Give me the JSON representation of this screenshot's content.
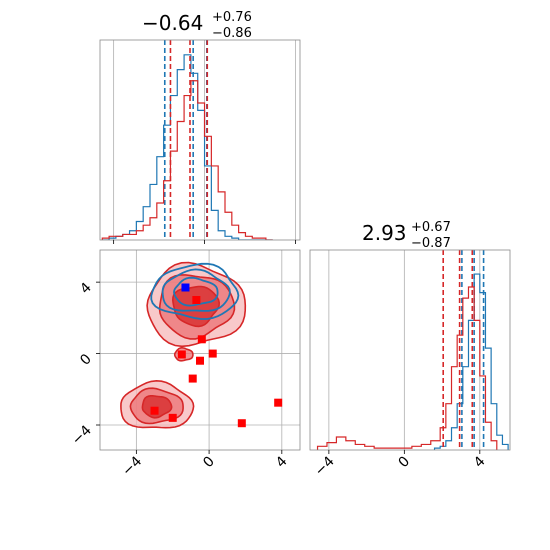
{
  "chart_data": {
    "type": "corner",
    "grid": true,
    "colors": {
      "series_a": "#1f77b4",
      "series_b": "#d62728",
      "marker_a": "#0000ff",
      "marker_b": "#ff0000"
    },
    "panels": {
      "hist_param1": {
        "type": "histogram",
        "title": {
          "main": "−0.64",
          "upper": "+0.76",
          "lower": "−0.86"
        },
        "xlim": [
          -4.6,
          4.2
        ],
        "x_ticks": [
          -4,
          0,
          4
        ],
        "quantiles": {
          "series_a": [
            -1.75,
            -0.5,
            0.1
          ],
          "series_b": [
            -1.5,
            -0.64,
            0.12
          ]
        },
        "series": [
          {
            "key": "series_a",
            "bins": [
              -4.5,
              -4.2,
              -3.9,
              -3.6,
              -3.3,
              -3.0,
              -2.7,
              -2.4,
              -2.1,
              -1.8,
              -1.5,
              -1.2,
              -0.9,
              -0.6,
              -0.3,
              0.0,
              0.3,
              0.6,
              0.9,
              1.2,
              1.5,
              1.8,
              2.1,
              2.4,
              2.7,
              3.0
            ],
            "counts": [
              0,
              0.01,
              0.02,
              0.03,
              0.05,
              0.1,
              0.18,
              0.3,
              0.45,
              0.62,
              0.78,
              0.92,
              1.0,
              0.9,
              0.7,
              0.4,
              0.16,
              0.05,
              0.02,
              0.01,
              0,
              0,
              0,
              0,
              0
            ]
          },
          {
            "key": "series_b",
            "bins": [
              -4.5,
              -4.2,
              -3.9,
              -3.6,
              -3.3,
              -3.0,
              -2.7,
              -2.4,
              -2.1,
              -1.8,
              -1.5,
              -1.2,
              -0.9,
              -0.6,
              -0.3,
              0.0,
              0.3,
              0.6,
              0.9,
              1.2,
              1.5,
              1.8,
              2.1,
              2.4,
              2.7,
              3.0
            ],
            "counts": [
              0.01,
              0.02,
              0.02,
              0.03,
              0.03,
              0.05,
              0.08,
              0.12,
              0.2,
              0.32,
              0.48,
              0.64,
              0.78,
              0.86,
              0.74,
              0.56,
              0.4,
              0.26,
              0.15,
              0.08,
              0.04,
              0.02,
              0.01,
              0.01,
              0
            ]
          }
        ]
      },
      "hist_param2": {
        "type": "histogram",
        "title": {
          "main": "2.93",
          "upper": "+0.67",
          "lower": "−0.87"
        },
        "xlim": [
          -5.0,
          5.6
        ],
        "x_ticks": [
          -4,
          0,
          4
        ],
        "quantiles": {
          "series_a": [
            3.05,
            3.7,
            4.2
          ],
          "series_b": [
            2.06,
            2.93,
            3.6
          ]
        },
        "series": [
          {
            "key": "series_a",
            "bins": [
              1.6,
              1.9,
              2.2,
              2.5,
              2.8,
              3.1,
              3.4,
              3.7,
              4.0,
              4.3,
              4.6,
              4.9,
              5.2,
              5.5
            ],
            "counts": [
              0.01,
              0.02,
              0.05,
              0.12,
              0.25,
              0.45,
              0.7,
              0.95,
              0.85,
              0.55,
              0.25,
              0.08,
              0.03
            ]
          },
          {
            "key": "series_b",
            "bins": [
              -4.6,
              -4.1,
              -3.6,
              -3.1,
              -2.6,
              -2.1,
              -1.6,
              -1.1,
              -0.6,
              -0.1,
              0.4,
              0.9,
              1.4,
              1.9,
              2.2,
              2.5,
              2.8,
              3.1,
              3.4,
              3.7,
              4.0,
              4.3,
              4.6,
              4.9
            ],
            "counts": [
              0.02,
              0.04,
              0.07,
              0.05,
              0.03,
              0.02,
              0.01,
              0.01,
              0.01,
              0.01,
              0.02,
              0.03,
              0.05,
              0.12,
              0.25,
              0.45,
              0.62,
              0.82,
              0.88,
              0.7,
              0.4,
              0.15,
              0.05
            ]
          }
        ]
      },
      "joint": {
        "type": "contour-scatter",
        "xlim": [
          -6.0,
          5.0
        ],
        "ylim": [
          -5.4,
          5.8
        ],
        "x_ticks": [
          -4,
          0,
          4
        ],
        "y_ticks": [
          -4,
          0,
          4
        ],
        "blobs_a": [
          {
            "cx": -0.75,
            "cy": 3.45,
            "rx": [
              1.2,
              1.85,
              2.35
            ],
            "ry": [
              0.75,
              1.15,
              1.5
            ]
          }
        ],
        "blobs_b": [
          {
            "cx": -0.75,
            "cy": 2.7,
            "rx": [
              1.25,
              2.05,
              2.7
            ],
            "ry": [
              1.1,
              1.75,
              2.25
            ]
          },
          {
            "cx": -2.9,
            "cy": -2.95,
            "rx": [
              0.8,
              1.45,
              2.0
            ],
            "ry": [
              0.6,
              0.95,
              1.3
            ]
          },
          {
            "cx": -1.4,
            "cy": -0.05,
            "rx": [
              0.5
            ],
            "ry": [
              0.35
            ]
          }
        ],
        "points_a": [
          [
            -1.3,
            3.7
          ]
        ],
        "points_b": [
          [
            -0.7,
            3.0
          ],
          [
            -0.4,
            0.8
          ],
          [
            -1.5,
            -0.05
          ],
          [
            -0.5,
            -0.4
          ],
          [
            0.2,
            0.0
          ],
          [
            -0.9,
            -1.4
          ],
          [
            -3.0,
            -3.2
          ],
          [
            -2.0,
            -3.6
          ],
          [
            1.8,
            -3.9
          ],
          [
            3.8,
            -2.75
          ]
        ]
      }
    }
  }
}
